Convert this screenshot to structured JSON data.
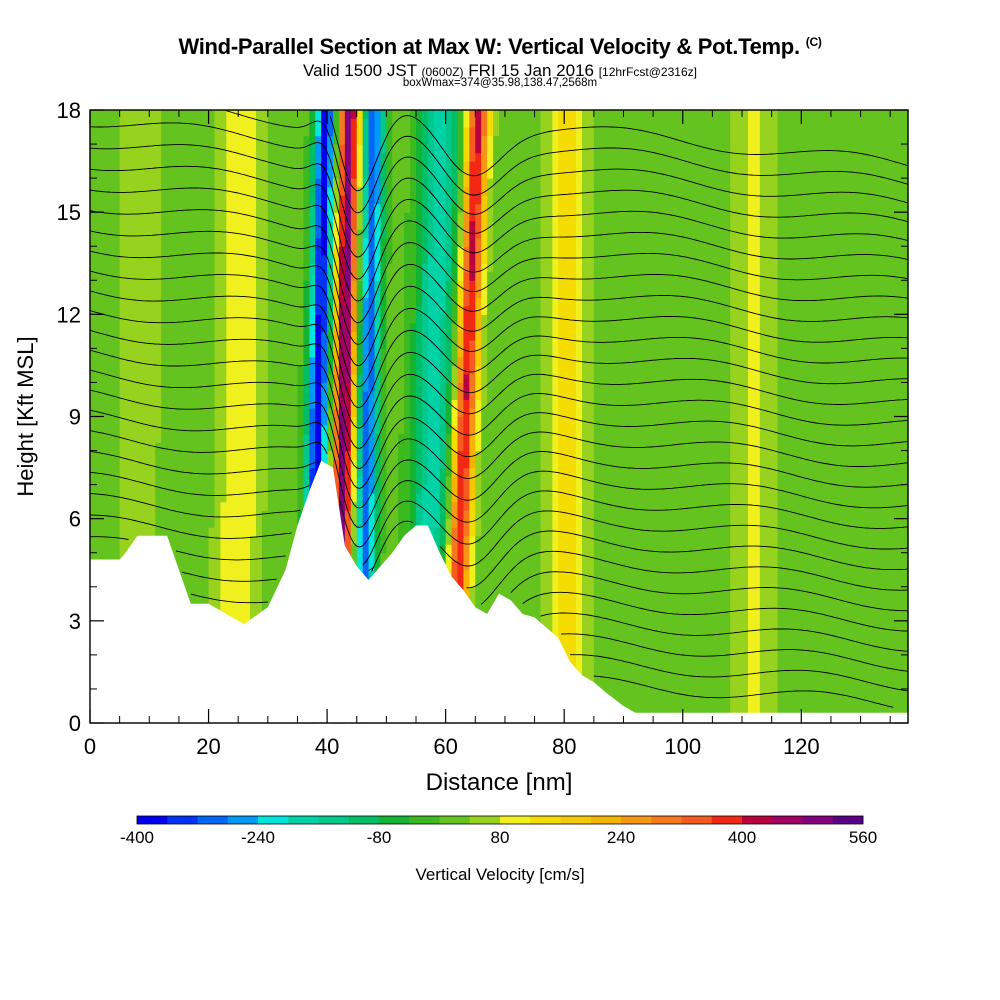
{
  "header": {
    "title": "Wind-Parallel Section at Max W: Vertical Velocity & Pot.Temp.",
    "copyright": "(C)",
    "valid_prefix": "Valid 1500 JST",
    "valid_utc": "(0600Z)",
    "valid_date": "FRI 15 Jan 2016",
    "forecast": "[12hrFcst@2316z]",
    "boxwmax": "boxWmax=374@35.98,138.47,2568m"
  },
  "colors": {
    "scale": [
      "#0000ee",
      "#0033f5",
      "#0066f5",
      "#0099f5",
      "#00c8f0",
      "#00e6dd",
      "#00d2a8",
      "#00c88a",
      "#00be64",
      "#14b432",
      "#3cb91e",
      "#64c31e",
      "#96d21e",
      "#c8e61e",
      "#f0f01e",
      "#f5dc00",
      "#f5c800",
      "#f5b400",
      "#f59614",
      "#f5781e",
      "#f55a1e",
      "#f02814",
      "#dc0a14",
      "#b9003c",
      "#a00064",
      "#82007d",
      "#5a0087"
    ],
    "terrain": "#ffffff",
    "contour": "#000000"
  },
  "chart_data": {
    "type": "heatmap",
    "xlabel": "Distance [nm]",
    "ylabel": "Height [Kft MSL]",
    "xlim": [
      0,
      138
    ],
    "ylim": [
      0,
      18
    ],
    "xticks": [
      0,
      20,
      40,
      60,
      80,
      100,
      120
    ],
    "yticks": [
      0,
      3,
      6,
      9,
      12,
      15,
      18
    ],
    "colorbar": {
      "label": "Vertical Velocity [cm/s]",
      "min": -400,
      "max": 560,
      "step": 40,
      "tick_labels": [
        -400,
        -240,
        -80,
        80,
        240,
        400,
        560
      ]
    },
    "terrain_profile": {
      "x": [
        0,
        5,
        6,
        8,
        13,
        15,
        17,
        20,
        23,
        26,
        30,
        33,
        35,
        37,
        39,
        41,
        43,
        45,
        47,
        49,
        51,
        53,
        55,
        57,
        59,
        61,
        63,
        65,
        67,
        69,
        71,
        73,
        75,
        77,
        79,
        81,
        83,
        85,
        87,
        90,
        92,
        95,
        100,
        110,
        120,
        130,
        138
      ],
      "height_kft": [
        4.8,
        4.8,
        5.0,
        5.5,
        5.5,
        4.5,
        3.5,
        3.5,
        3.2,
        2.9,
        3.4,
        4.5,
        5.8,
        6.8,
        7.7,
        7.5,
        5.2,
        4.6,
        4.2,
        4.6,
        5.0,
        5.5,
        5.8,
        5.8,
        5.0,
        4.3,
        3.9,
        3.4,
        3.2,
        3.8,
        3.6,
        3.2,
        3.1,
        2.8,
        2.5,
        1.8,
        1.4,
        1.2,
        0.9,
        0.5,
        0.3,
        0.3,
        0.3,
        0.3,
        0.3,
        0.3,
        0.3
      ]
    },
    "velocity_features": [
      {
        "x": 42.5,
        "tilt": 0.1,
        "amplitude": 480
      },
      {
        "x": 38.0,
        "tilt": 0.15,
        "amplitude": -400
      },
      {
        "x": 46.5,
        "tilt": 0.12,
        "amplitude": -330
      },
      {
        "x": 62.5,
        "tilt": 0.25,
        "amplitude": 400
      },
      {
        "x": 57.5,
        "tilt": 0.15,
        "amplitude": -200
      },
      {
        "x": 80.5,
        "tilt": 0.0,
        "amplitude": 120
      },
      {
        "x": 25.0,
        "tilt": 0.05,
        "amplitude": 100
      },
      {
        "x": 112.0,
        "tilt": 0.0,
        "amplitude": 70
      },
      {
        "x": 8.0,
        "tilt": 0.05,
        "amplitude": 50
      }
    ]
  }
}
